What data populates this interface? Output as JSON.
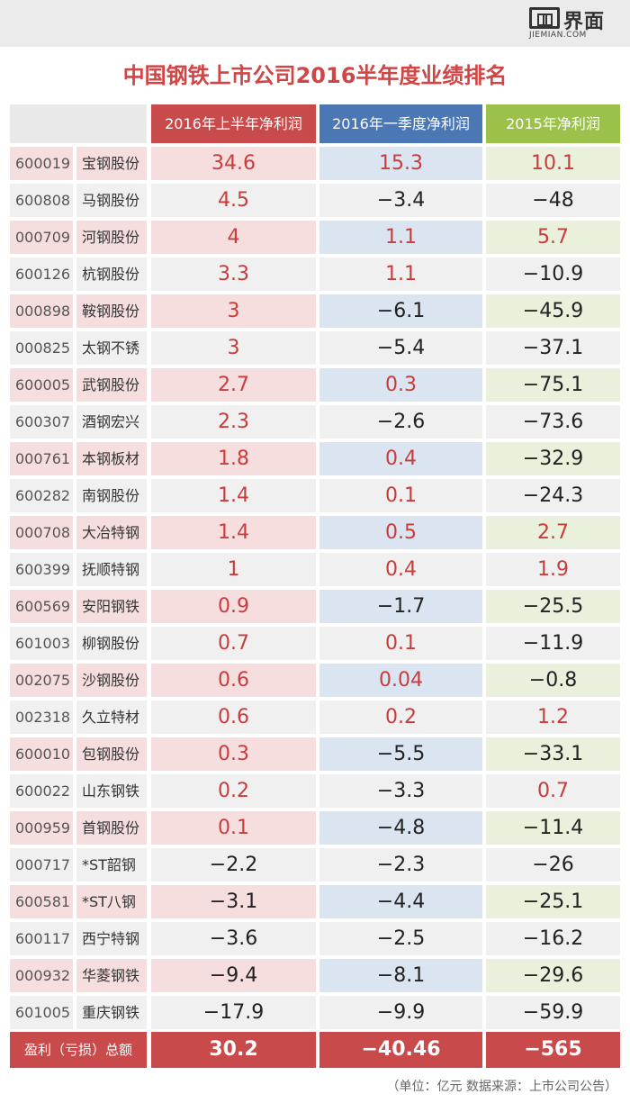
{
  "logo": {
    "cn": "界面",
    "en": "JIEMIAN.COM"
  },
  "chart_data": {
    "type": "table",
    "title": "中国钢铁上市公司2016半年度业绩排名",
    "columns": [
      "2016年上半年净利润",
      "2016年一季度净利润",
      "2015年净利润"
    ],
    "rows": [
      {
        "code": "600019",
        "name": "宝钢股份",
        "values": [
          "34.6",
          "15.3",
          "10.1"
        ]
      },
      {
        "code": "600808",
        "name": "马钢股份",
        "values": [
          "4.5",
          "−3.4",
          "−48"
        ]
      },
      {
        "code": "000709",
        "name": "河钢股份",
        "values": [
          "4",
          "1.1",
          "5.7"
        ]
      },
      {
        "code": "600126",
        "name": "杭钢股份",
        "values": [
          "3.3",
          "1.1",
          "−10.9"
        ]
      },
      {
        "code": "000898",
        "name": "鞍钢股份",
        "values": [
          "3",
          "−6.1",
          "−45.9"
        ]
      },
      {
        "code": "000825",
        "name": "太钢不锈",
        "values": [
          "3",
          "−5.4",
          "−37.1"
        ]
      },
      {
        "code": "600005",
        "name": "武钢股份",
        "values": [
          "2.7",
          "0.3",
          "−75.1"
        ]
      },
      {
        "code": "600307",
        "name": "酒钢宏兴",
        "values": [
          "2.3",
          "−2.6",
          "−73.6"
        ]
      },
      {
        "code": "000761",
        "name": "本钢板材",
        "values": [
          "1.8",
          "0.4",
          "−32.9"
        ]
      },
      {
        "code": "600282",
        "name": "南钢股份",
        "values": [
          "1.4",
          "0.1",
          "−24.3"
        ]
      },
      {
        "code": "000708",
        "name": "大冶特钢",
        "values": [
          "1.4",
          "0.5",
          "2.7"
        ]
      },
      {
        "code": "600399",
        "name": "抚顺特钢",
        "values": [
          "1",
          "0.4",
          "1.9"
        ]
      },
      {
        "code": "600569",
        "name": "安阳钢铁",
        "values": [
          "0.9",
          "−1.7",
          "−25.5"
        ]
      },
      {
        "code": "601003",
        "name": "柳钢股份",
        "values": [
          "0.7",
          "0.1",
          "−11.9"
        ]
      },
      {
        "code": "002075",
        "name": "沙钢股份",
        "values": [
          "0.6",
          "0.04",
          "−0.8"
        ]
      },
      {
        "code": "002318",
        "name": "久立特材",
        "values": [
          "0.6",
          "0.2",
          "1.2"
        ]
      },
      {
        "code": "600010",
        "name": "包钢股份",
        "values": [
          "0.3",
          "−5.5",
          "−33.1"
        ]
      },
      {
        "code": "600022",
        "name": "山东钢铁",
        "values": [
          "0.2",
          "−3.3",
          "0.7"
        ]
      },
      {
        "code": "000959",
        "name": "首钢股份",
        "values": [
          "0.1",
          "−4.8",
          "−11.4"
        ]
      },
      {
        "code": "000717",
        "name": "*ST韶钢",
        "values": [
          "−2.2",
          "−2.3",
          "−26"
        ]
      },
      {
        "code": "600581",
        "name": "*ST八钢",
        "values": [
          "−3.1",
          "−4.4",
          "−25.1"
        ]
      },
      {
        "code": "600117",
        "name": "西宁特钢",
        "values": [
          "−3.6",
          "−2.5",
          "−16.2"
        ]
      },
      {
        "code": "000932",
        "name": "华菱钢铁",
        "values": [
          "−9.4",
          "−8.1",
          "−29.6"
        ]
      },
      {
        "code": "601005",
        "name": "重庆钢铁",
        "values": [
          "−17.9",
          "−9.9",
          "−59.9"
        ]
      }
    ],
    "total": {
      "label": "盈利（亏损）总额",
      "values": [
        "30.2",
        "−40.46",
        "−565"
      ]
    },
    "footnote": "（单位：亿元    数据来源：上市公司公告）",
    "colors": {
      "title": "#d04646",
      "col1_header": "#c84a4a",
      "col2_header": "#4b77b4",
      "col3_header": "#9bc14b",
      "positive_value": "#c83c3c",
      "negative_value": "#222222"
    }
  }
}
